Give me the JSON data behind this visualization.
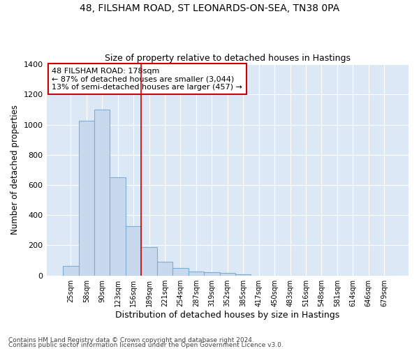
{
  "title_line1": "48, FILSHAM ROAD, ST LEONARDS-ON-SEA, TN38 0PA",
  "title_line2": "Size of property relative to detached houses in Hastings",
  "xlabel": "Distribution of detached houses by size in Hastings",
  "ylabel": "Number of detached properties",
  "footnote_line1": "Contains HM Land Registry data © Crown copyright and database right 2024.",
  "footnote_line2": "Contains public sector information licensed under the Open Government Licence v3.0.",
  "annotation_line1": "48 FILSHAM ROAD: 178sqm",
  "annotation_line2": "← 87% of detached houses are smaller (3,044)",
  "annotation_line3": "13% of semi-detached houses are larger (457) →",
  "bar_labels": [
    "25sqm",
    "58sqm",
    "90sqm",
    "123sqm",
    "156sqm",
    "189sqm",
    "221sqm",
    "254sqm",
    "287sqm",
    "319sqm",
    "352sqm",
    "385sqm",
    "417sqm",
    "450sqm",
    "483sqm",
    "516sqm",
    "548sqm",
    "581sqm",
    "614sqm",
    "646sqm",
    "679sqm"
  ],
  "bar_values": [
    65,
    1025,
    1100,
    650,
    325,
    190,
    90,
    50,
    25,
    20,
    15,
    10,
    0,
    0,
    0,
    0,
    0,
    0,
    0,
    0,
    0
  ],
  "bar_color": "#c8d8ed",
  "bar_edge_color": "#7bafd4",
  "plot_bg_color": "#dce8f5",
  "fig_bg_color": "#ffffff",
  "vline_color": "#cc0000",
  "ylim": [
    0,
    1400
  ],
  "yticks": [
    0,
    200,
    400,
    600,
    800,
    1000,
    1200,
    1400
  ],
  "annotation_box_color": "white",
  "annotation_box_edge": "#cc0000",
  "figsize": [
    6.0,
    5.0
  ],
  "dpi": 100
}
